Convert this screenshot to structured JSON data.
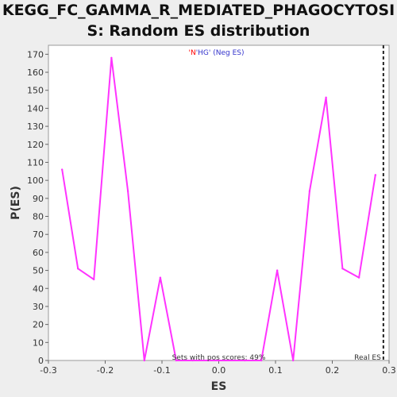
{
  "chart_data": {
    "type": "line",
    "title_line1": "KEGG_FC_GAMMA_R_MEDIATED_PHAGOCYTOSI",
    "title_line2": "S: Random ES distribution",
    "xlabel": "ES",
    "ylabel": "P(ES)",
    "xlim": [
      -0.3,
      0.3
    ],
    "ylim": [
      0,
      175
    ],
    "xticks": [
      -0.3,
      -0.2,
      -0.1,
      0.0,
      0.1,
      0.2,
      0.3
    ],
    "xtick_labels": [
      "-0.3",
      "-0.2",
      "-0.1",
      "0.0",
      "0.1",
      "0.2",
      "0.3"
    ],
    "yticks": [
      0,
      10,
      20,
      30,
      40,
      50,
      60,
      70,
      80,
      90,
      100,
      110,
      120,
      130,
      140,
      150,
      160,
      170
    ],
    "grid": false,
    "legend": {
      "placement": "top-center",
      "part1": "'N",
      "part1_color": "#ff0000",
      "part2": "'HG' (Neg ES)",
      "part2_color": "#3333cc"
    },
    "series": [
      {
        "color": "#ff33ff",
        "x": [
          -0.276,
          -0.248,
          -0.22,
          -0.189,
          -0.16,
          -0.131,
          -0.103,
          -0.075,
          -0.046,
          0.0,
          0.046,
          0.075,
          0.103,
          0.131,
          0.16,
          0.189,
          0.218,
          0.247,
          0.276
        ],
        "y": [
          106,
          51,
          45,
          168,
          94,
          0,
          46,
          0,
          0,
          0,
          0,
          0,
          50,
          0,
          94,
          146,
          51,
          46,
          103
        ]
      }
    ],
    "real_es": {
      "x": 0.29,
      "label": "Real ES"
    },
    "annotation": "Sets with pos scores: 49%"
  }
}
